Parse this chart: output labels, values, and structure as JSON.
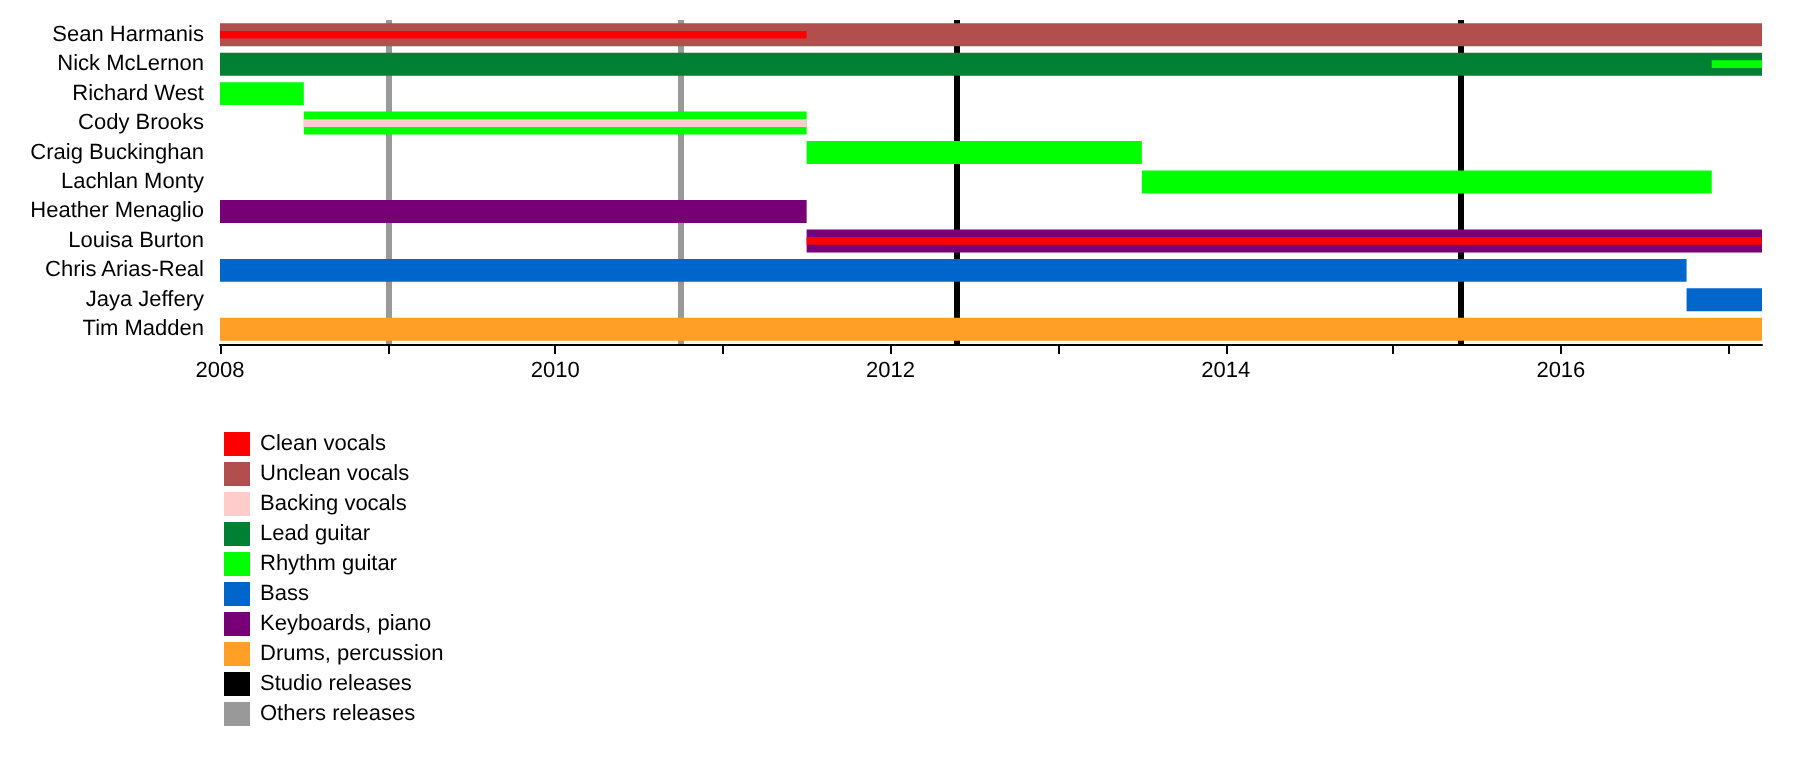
{
  "chart_data": {
    "type": "bar",
    "orientation": "horizontal",
    "categories": [
      "Sean Harmanis",
      "Nick McLernon",
      "Richard West",
      "Cody Brooks",
      "Craig Buckinghan",
      "Lachlan Monty",
      "Heather Menaglio",
      "Louisa Burton",
      "Chris Arias-Real",
      "Jaya Jeffery",
      "Tim Madden"
    ],
    "series": [
      {
        "name": "Clean vocals",
        "color": "#ff0000",
        "base": [
          2008,
          null,
          null,
          null,
          null,
          null,
          null,
          2011.5,
          null,
          null,
          null
        ],
        "values": [
          3.5,
          null,
          null,
          null,
          null,
          null,
          null,
          5.7,
          null,
          null,
          null
        ]
      },
      {
        "name": "Unclean vocals",
        "color": "#b24e4e",
        "base": [
          2008,
          null,
          null,
          null,
          null,
          null,
          null,
          null,
          null,
          null,
          null
        ],
        "values": [
          9.2,
          null,
          null,
          null,
          null,
          null,
          null,
          null,
          null,
          null,
          null
        ]
      },
      {
        "name": "Backing vocals",
        "color": "#ffcccc",
        "base": [
          null,
          null,
          null,
          2008.5,
          null,
          null,
          null,
          null,
          null,
          null,
          null
        ],
        "values": [
          null,
          null,
          null,
          3.0,
          null,
          null,
          null,
          null,
          null,
          null,
          null
        ]
      },
      {
        "name": "Lead guitar",
        "color": "#008033",
        "base": [
          null,
          2008,
          null,
          null,
          null,
          null,
          null,
          null,
          null,
          null,
          null
        ],
        "values": [
          null,
          9.2,
          null,
          null,
          null,
          null,
          null,
          null,
          null,
          null,
          null
        ]
      },
      {
        "name": "Rhythm guitar",
        "color": "#00ff00",
        "base": [
          null,
          2016.9,
          2008,
          2008.5,
          2011.5,
          2013.5,
          null,
          null,
          null,
          null,
          null
        ],
        "values": [
          null,
          0.3,
          0.5,
          3.0,
          2.0,
          3.4,
          null,
          null,
          null,
          null,
          null
        ]
      },
      {
        "name": "Bass",
        "color": "#0066cc",
        "base": [
          null,
          null,
          null,
          null,
          null,
          null,
          null,
          null,
          2008,
          2016.75,
          null
        ],
        "values": [
          null,
          null,
          null,
          null,
          null,
          null,
          null,
          null,
          8.75,
          0.45,
          null
        ]
      },
      {
        "name": "Keyboards, piano",
        "color": "#770077",
        "base": [
          null,
          null,
          null,
          null,
          null,
          null,
          2008,
          2011.5,
          null,
          null,
          null
        ],
        "values": [
          null,
          null,
          null,
          null,
          null,
          null,
          3.5,
          5.7,
          null,
          null,
          null
        ]
      },
      {
        "name": "Drums, percussion",
        "color": "#ff9f26",
        "base": [
          null,
          null,
          null,
          null,
          null,
          null,
          null,
          null,
          null,
          null,
          2008
        ],
        "values": [
          null,
          null,
          null,
          null,
          null,
          null,
          null,
          null,
          null,
          null,
          9.2
        ]
      }
    ],
    "ref_lines": [
      {
        "axis": "x",
        "value": 2012.4,
        "label": "Studio releases",
        "color": "#000000"
      },
      {
        "axis": "x",
        "value": 2015.4,
        "color": "#000000"
      },
      {
        "axis": "x",
        "value": 2009.0,
        "label": "Others releases",
        "color": "#999999"
      },
      {
        "axis": "x",
        "value": 2010.75,
        "color": "#999999"
      }
    ],
    "xlim": [
      2008,
      2017.2
    ],
    "xticks": [
      2008,
      {
        "value": 2009,
        "label": null
      },
      2010,
      {
        "value": 2011,
        "label": null
      },
      2012,
      {
        "value": 2013,
        "label": null
      },
      2014,
      {
        "value": 2015,
        "label": null
      },
      2016,
      {
        "value": 2017,
        "label": null
      }
    ],
    "grid": false,
    "legend": "bottom left"
  }
}
